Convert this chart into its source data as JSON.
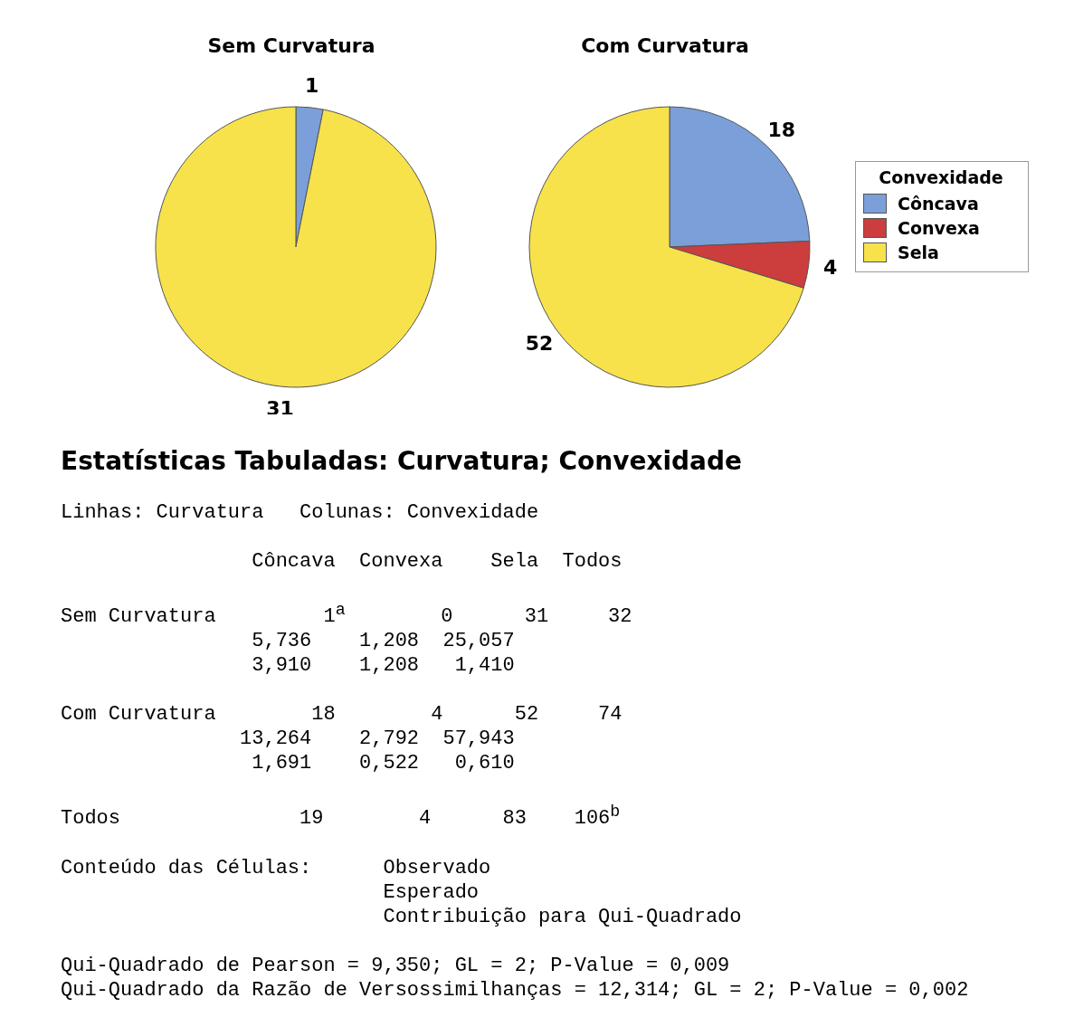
{
  "chart_data": [
    {
      "type": "pie",
      "title": "Sem Curvatura",
      "categories": [
        null,
        null
      ],
      "values": [
        1,
        31
      ],
      "colors": [
        "#7b9fd8",
        "#f7e24c"
      ],
      "data_labels": true,
      "legend": false
    },
    {
      "type": "pie",
      "title": "Com Curvatura",
      "categories": [
        "Côncava",
        "Convexa",
        "Sela"
      ],
      "values": [
        18,
        4,
        52
      ],
      "colors": [
        "#7b9fd8",
        "#cc3d3d",
        "#f7e24c"
      ],
      "data_labels": true,
      "legend": "right",
      "legend_title": "Convexidade"
    },
    {
      "type": "other",
      "title": "Estatísticas Tabuladas: Curvatura; Convexidade",
      "annotations": [
        "Linhas: Curvatura   Colunas: Convexidade",
        "                Côncava  Convexa    Sela  Todos",
        "Sem Curvatura         1$^{a}$        0      31     32",
        "                5,736    1,208  25,057",
        "                3,910    1,208   1,410",
        "Com Curvatura        18        4      52     74",
        "               13,264    2,792  57,943",
        "                1,691    0,522   0,610",
        "Todos               19        4      83    106$^{b}$",
        "Conteúdo das Células:      Observado",
        "                           Esperado",
        "                           Contribuição para Qui-Quadrado",
        "Qui-Quadrado de Pearson = 9,350; GL = 2; P-Value = 0,009",
        "Qui-Quadrado da Razão de Versossimilhanças = 12,314; GL = 2; P-Value = 0,002"
      ]
    }
  ]
}
